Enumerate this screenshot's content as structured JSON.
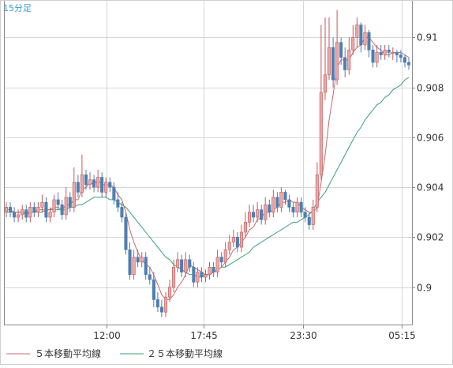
{
  "chart_data": {
    "type": "candlestick",
    "title": "15分足",
    "x_tick_labels": [
      "12:00",
      "17:45",
      "23:30",
      "05:15"
    ],
    "y_tick_labels": [
      "0.91",
      "0.908",
      "0.906",
      "0.904",
      "0.902",
      "0.9"
    ],
    "y_ticks": [
      0.91,
      0.908,
      0.906,
      0.904,
      0.902,
      0.9
    ],
    "ylim": [
      0.8985,
      0.9115
    ],
    "grid": true,
    "legend_position": "bottom-left",
    "colors": {
      "up": "#e9a7a7",
      "down": "#4f7fb0",
      "ma5": "#c86a6a",
      "ma25": "#3aa076",
      "grid": "#d6d6d6",
      "axis": "#888888",
      "title": "#3a9ad9",
      "tick_text": "#333333"
    },
    "legend": [
      {
        "name": "５本移動平均線",
        "color": "#c86a6a"
      },
      {
        "name": "２５本移動平均線",
        "color": "#3aa076"
      }
    ],
    "series": {
      "close": [
        0.9032,
        0.903,
        0.9028,
        0.9029,
        0.9031,
        0.9028,
        0.9032,
        0.903,
        0.9032,
        0.9034,
        0.9028,
        0.903,
        0.9035,
        0.9033,
        0.9029,
        0.9036,
        0.9032,
        0.9042,
        0.9038,
        0.9045,
        0.9041,
        0.9043,
        0.904,
        0.9044,
        0.9038,
        0.9042,
        0.904,
        0.9035,
        0.9032,
        0.9028,
        0.9015,
        0.9005,
        0.9012,
        0.901,
        0.9012,
        0.9005,
        0.9003,
        0.8995,
        0.8992,
        0.899,
        0.8996,
        0.9,
        0.9008,
        0.9011,
        0.9006,
        0.9011,
        0.9008,
        0.9002,
        0.9006,
        0.9004,
        0.9005,
        0.9008,
        0.9006,
        0.9012,
        0.901,
        0.9015,
        0.9018,
        0.902,
        0.9016,
        0.9022,
        0.9026,
        0.903,
        0.9028,
        0.9031,
        0.9027,
        0.9033,
        0.903,
        0.9036,
        0.9032,
        0.9038,
        0.9035,
        0.9032,
        0.903,
        0.9034,
        0.903,
        0.9028,
        0.9025,
        0.9032,
        0.9045,
        0.9078,
        0.9085,
        0.9096,
        0.9083,
        0.9098,
        0.9092,
        0.9087,
        0.9095,
        0.91,
        0.9105,
        0.9097,
        0.9102,
        0.9095,
        0.909,
        0.9094,
        0.9093,
        0.9095,
        0.9094,
        0.9094,
        0.9093,
        0.9092,
        0.909,
        0.9089
      ],
      "open": [
        0.903,
        0.9032,
        0.903,
        0.9028,
        0.9029,
        0.9031,
        0.9028,
        0.9032,
        0.903,
        0.9032,
        0.9034,
        0.9028,
        0.903,
        0.9035,
        0.9033,
        0.9029,
        0.9036,
        0.9032,
        0.9042,
        0.9038,
        0.9045,
        0.9041,
        0.9043,
        0.904,
        0.9044,
        0.9038,
        0.9042,
        0.904,
        0.9035,
        0.9032,
        0.9028,
        0.9015,
        0.9005,
        0.9012,
        0.901,
        0.9012,
        0.9005,
        0.9003,
        0.8995,
        0.8992,
        0.899,
        0.8996,
        0.9,
        0.9008,
        0.9011,
        0.9006,
        0.9011,
        0.9008,
        0.9002,
        0.9006,
        0.9004,
        0.9005,
        0.9008,
        0.9006,
        0.9012,
        0.901,
        0.9015,
        0.9018,
        0.902,
        0.9016,
        0.9022,
        0.9026,
        0.903,
        0.9028,
        0.9031,
        0.9027,
        0.9033,
        0.903,
        0.9036,
        0.9032,
        0.9038,
        0.9035,
        0.9032,
        0.903,
        0.9034,
        0.903,
        0.9028,
        0.9025,
        0.9032,
        0.9045,
        0.9078,
        0.9085,
        0.9096,
        0.9083,
        0.9098,
        0.9092,
        0.9087,
        0.9095,
        0.91,
        0.9105,
        0.9097,
        0.9102,
        0.9095,
        0.909,
        0.9094,
        0.9093,
        0.9095,
        0.9094,
        0.9094,
        0.9093,
        0.9092,
        0.909
      ],
      "high": [
        0.9034,
        0.9034,
        0.9032,
        0.9031,
        0.9033,
        0.9033,
        0.9034,
        0.9034,
        0.9034,
        0.9037,
        0.9036,
        0.9032,
        0.9037,
        0.9038,
        0.9035,
        0.904,
        0.9038,
        0.9048,
        0.9045,
        0.9053,
        0.9047,
        0.9046,
        0.9045,
        0.9047,
        0.9046,
        0.9044,
        0.9044,
        0.9042,
        0.9038,
        0.9034,
        0.903,
        0.9018,
        0.9015,
        0.9015,
        0.9014,
        0.9014,
        0.9008,
        0.9006,
        0.8998,
        0.8995,
        0.8998,
        0.9003,
        0.9011,
        0.9014,
        0.9013,
        0.9014,
        0.9013,
        0.901,
        0.9008,
        0.9008,
        0.9007,
        0.901,
        0.901,
        0.9015,
        0.9014,
        0.9018,
        0.9021,
        0.9023,
        0.9022,
        0.9025,
        0.903,
        0.9033,
        0.9033,
        0.9034,
        0.9033,
        0.9036,
        0.9035,
        0.9039,
        0.9038,
        0.904,
        0.9039,
        0.9037,
        0.9034,
        0.9036,
        0.9036,
        0.9032,
        0.903,
        0.9035,
        0.905,
        0.9105,
        0.9108,
        0.9108,
        0.91,
        0.9111,
        0.91,
        0.9096,
        0.91,
        0.9105,
        0.9108,
        0.9106,
        0.9105,
        0.9103,
        0.9097,
        0.9097,
        0.9097,
        0.9097,
        0.9097,
        0.9096,
        0.9095,
        0.9095,
        0.9093,
        0.9092
      ],
      "low": [
        0.9028,
        0.9028,
        0.9026,
        0.9026,
        0.9027,
        0.9026,
        0.9026,
        0.9028,
        0.9028,
        0.903,
        0.9026,
        0.9026,
        0.9028,
        0.9031,
        0.9027,
        0.9027,
        0.903,
        0.903,
        0.9036,
        0.9036,
        0.9039,
        0.9039,
        0.9038,
        0.9038,
        0.9036,
        0.9036,
        0.9038,
        0.9033,
        0.903,
        0.9026,
        0.9013,
        0.9003,
        0.9003,
        0.9008,
        0.9008,
        0.9003,
        0.9001,
        0.8992,
        0.899,
        0.8988,
        0.8988,
        0.8994,
        0.8998,
        0.9006,
        0.9004,
        0.9004,
        0.9006,
        0.9,
        0.9,
        0.9002,
        0.9002,
        0.9003,
        0.9004,
        0.9004,
        0.9008,
        0.9008,
        0.9013,
        0.9016,
        0.9014,
        0.9014,
        0.902,
        0.9024,
        0.9026,
        0.9026,
        0.9025,
        0.9025,
        0.9028,
        0.9028,
        0.903,
        0.903,
        0.9033,
        0.903,
        0.9028,
        0.9028,
        0.9028,
        0.9026,
        0.9023,
        0.9023,
        0.903,
        0.9043,
        0.9075,
        0.9083,
        0.908,
        0.9081,
        0.9089,
        0.9084,
        0.9085,
        0.9093,
        0.9096,
        0.9094,
        0.9095,
        0.9092,
        0.9088,
        0.9088,
        0.9091,
        0.9091,
        0.9092,
        0.9091,
        0.909,
        0.909,
        0.9088,
        0.9087
      ],
      "ma5": [
        0.9031,
        0.9031,
        0.903,
        0.903,
        0.903,
        0.9029,
        0.903,
        0.903,
        0.9031,
        0.9031,
        0.9031,
        0.9031,
        0.9032,
        0.9032,
        0.9031,
        0.9033,
        0.9033,
        0.9035,
        0.9035,
        0.9039,
        0.904,
        0.9042,
        0.9041,
        0.9043,
        0.9041,
        0.9041,
        0.9041,
        0.904,
        0.9037,
        0.9035,
        0.903,
        0.9023,
        0.9018,
        0.9014,
        0.9011,
        0.9009,
        0.9008,
        0.9005,
        0.9001,
        0.8997,
        0.8995,
        0.8995,
        0.8997,
        0.9,
        0.9002,
        0.9005,
        0.9009,
        0.9008,
        0.9007,
        0.9006,
        0.9005,
        0.9005,
        0.9006,
        0.9007,
        0.9008,
        0.901,
        0.9012,
        0.9015,
        0.9016,
        0.9018,
        0.902,
        0.9023,
        0.9024,
        0.9027,
        0.9028,
        0.903,
        0.903,
        0.9031,
        0.9032,
        0.9034,
        0.9034,
        0.9035,
        0.9034,
        0.9034,
        0.9032,
        0.9031,
        0.903,
        0.903,
        0.9032,
        0.9042,
        0.9053,
        0.9067,
        0.9077,
        0.9088,
        0.9091,
        0.9091,
        0.9091,
        0.9094,
        0.9096,
        0.9097,
        0.91,
        0.91,
        0.9098,
        0.9096,
        0.9095,
        0.9093,
        0.9093,
        0.9094,
        0.9094,
        0.9094,
        0.9093,
        0.9092
      ],
      "ma25": [
        0.903,
        0.903,
        0.903,
        0.903,
        0.903,
        0.903,
        0.903,
        0.903,
        0.903,
        0.903,
        0.9031,
        0.9031,
        0.9031,
        0.9031,
        0.9031,
        0.9031,
        0.9032,
        0.9032,
        0.9033,
        0.9033,
        0.9034,
        0.9035,
        0.9036,
        0.9036,
        0.9036,
        0.9036,
        0.9035,
        0.9035,
        0.9034,
        0.9033,
        0.9032,
        0.903,
        0.9028,
        0.9026,
        0.9024,
        0.9022,
        0.902,
        0.9018,
        0.9016,
        0.9014,
        0.9012,
        0.9011,
        0.9009,
        0.9008,
        0.9007,
        0.9006,
        0.9005,
        0.9005,
        0.9004,
        0.9004,
        0.9005,
        0.9005,
        0.9006,
        0.9007,
        0.9008,
        0.9008,
        0.9009,
        0.901,
        0.9011,
        0.9012,
        0.9013,
        0.9014,
        0.9016,
        0.9017,
        0.9018,
        0.9019,
        0.902,
        0.9021,
        0.9022,
        0.9023,
        0.9024,
        0.9025,
        0.9026,
        0.9026,
        0.9027,
        0.9028,
        0.9029,
        0.9031,
        0.9034,
        0.9036,
        0.9038,
        0.9041,
        0.9044,
        0.9047,
        0.905,
        0.9053,
        0.9056,
        0.9059,
        0.9062,
        0.9064,
        0.9067,
        0.9069,
        0.9071,
        0.9073,
        0.9074,
        0.9076,
        0.9077,
        0.9079,
        0.908,
        0.9081,
        0.9083,
        0.9084
      ]
    }
  }
}
